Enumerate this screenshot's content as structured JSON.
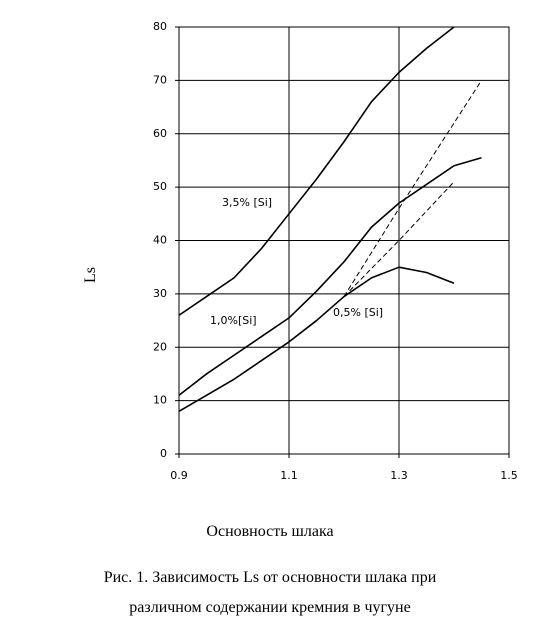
{
  "chart_data": {
    "type": "line",
    "y_label": "Ls",
    "x_label": "Основность шлака",
    "caption": [
      "Рис. 1. Зависимость Ls от основности шлака при",
      "различном содержании кремния в чугуне"
    ],
    "xlim": [
      0.9,
      1.5
    ],
    "xticks": [
      0.9,
      1.1,
      1.3,
      1.5
    ],
    "ylim": [
      0,
      80
    ],
    "yticks": [
      0,
      10,
      20,
      30,
      40,
      50,
      60,
      70,
      80
    ],
    "grid": true,
    "series": [
      {
        "name": "3,5% [Si]",
        "color": "#000000",
        "dashed": false,
        "x": [
          0.9,
          0.95,
          1.0,
          1.05,
          1.1,
          1.15,
          1.2,
          1.25,
          1.3,
          1.35,
          1.4
        ],
        "values": [
          26,
          29.5,
          33,
          38.5,
          45,
          51.5,
          58.5,
          66,
          71.5,
          76,
          80
        ]
      },
      {
        "name": "1,0%[Si]",
        "color": "#000000",
        "dashed": false,
        "x": [
          0.9,
          0.95,
          1.0,
          1.05,
          1.1,
          1.15,
          1.2,
          1.25,
          1.3,
          1.35,
          1.4,
          1.45
        ],
        "values": [
          11,
          15,
          18.5,
          22,
          25.5,
          30.5,
          36,
          42.5,
          47,
          50.5,
          54,
          55.5
        ]
      },
      {
        "name": "0,5% [Si]",
        "color": "#000000",
        "dashed": false,
        "x": [
          0.9,
          0.95,
          1.0,
          1.05,
          1.1,
          1.15,
          1.2,
          1.25,
          1.3,
          1.35,
          1.4
        ],
        "values": [
          8,
          11,
          14,
          17.5,
          21,
          25,
          29.5,
          33,
          35,
          34,
          32
        ]
      },
      {
        "color": "#000000",
        "dashed": true,
        "x": [
          1.2,
          1.3,
          1.45
        ],
        "values": [
          29.5,
          46,
          70
        ]
      },
      {
        "color": "#000000",
        "dashed": true,
        "x": [
          1.2,
          1.3,
          1.4
        ],
        "values": [
          29.5,
          40,
          51
        ]
      }
    ]
  }
}
